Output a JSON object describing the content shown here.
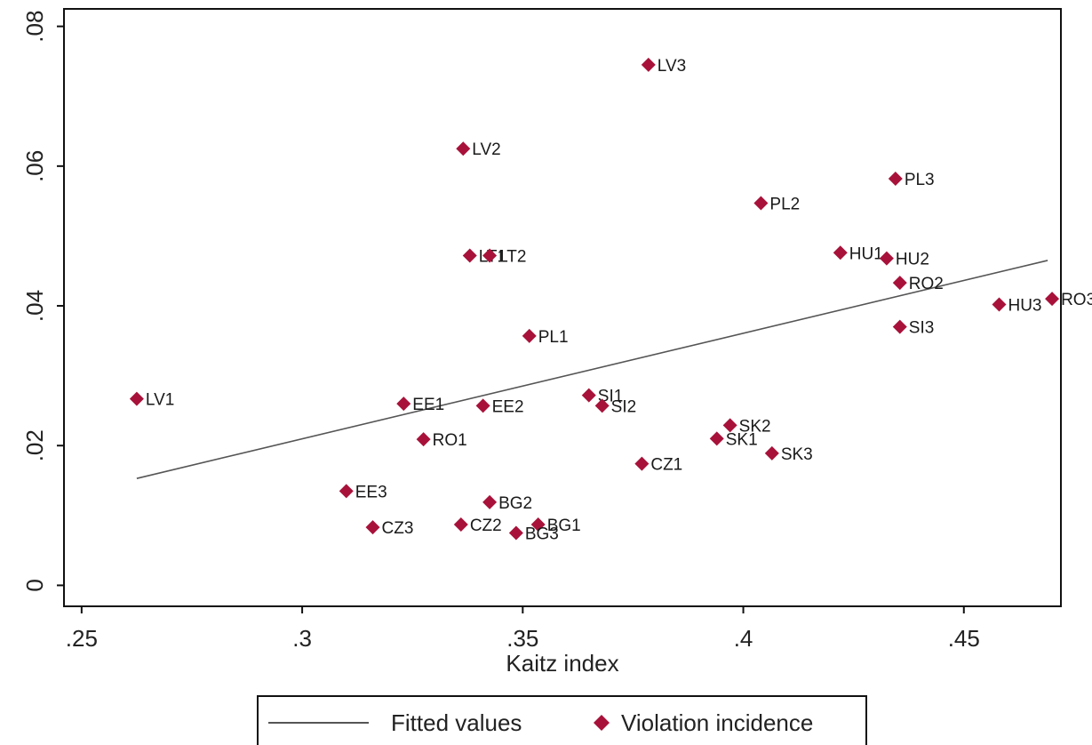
{
  "chart_data": {
    "type": "scatter",
    "xlabel": "Kaitz index",
    "ylabel": "",
    "xlim": [
      0.246,
      0.472
    ],
    "ylim": [
      -0.003,
      0.0825
    ],
    "x_ticks": [
      0.25,
      0.3,
      0.35,
      0.4,
      0.45
    ],
    "x_tick_labels": [
      ".25",
      ".3",
      ".35",
      ".4",
      ".45"
    ],
    "y_ticks": [
      0,
      0.02,
      0.04,
      0.06,
      0.08
    ],
    "y_tick_labels": [
      "0",
      ".02",
      ".04",
      ".06",
      ".08"
    ],
    "grid": false,
    "colors": {
      "marker": "#a8123a",
      "fit_line": "#555555"
    },
    "series": [
      {
        "name": "Violation incidence",
        "marker": "diamond",
        "points": [
          {
            "label": "LV1",
            "x": 0.2625,
            "y": 0.0267
          },
          {
            "label": "LV2",
            "x": 0.3365,
            "y": 0.0625
          },
          {
            "label": "LV3",
            "x": 0.3785,
            "y": 0.0745
          },
          {
            "label": "LT1",
            "x": 0.338,
            "y": 0.0472
          },
          {
            "label": "LT2",
            "x": 0.3425,
            "y": 0.0472
          },
          {
            "label": "PL1",
            "x": 0.3515,
            "y": 0.0357
          },
          {
            "label": "PL2",
            "x": 0.404,
            "y": 0.0547
          },
          {
            "label": "PL3",
            "x": 0.4345,
            "y": 0.0582
          },
          {
            "label": "HU1",
            "x": 0.422,
            "y": 0.0476
          },
          {
            "label": "HU2",
            "x": 0.4325,
            "y": 0.0468
          },
          {
            "label": "HU3",
            "x": 0.458,
            "y": 0.0402
          },
          {
            "label": "RO1",
            "x": 0.3275,
            "y": 0.0209
          },
          {
            "label": "RO2",
            "x": 0.4355,
            "y": 0.0433
          },
          {
            "label": "RO3",
            "x": 0.47,
            "y": 0.041
          },
          {
            "label": "SI1",
            "x": 0.365,
            "y": 0.0272
          },
          {
            "label": "SI2",
            "x": 0.368,
            "y": 0.0257
          },
          {
            "label": "SI3",
            "x": 0.4355,
            "y": 0.037
          },
          {
            "label": "EE1",
            "x": 0.323,
            "y": 0.026
          },
          {
            "label": "EE2",
            "x": 0.341,
            "y": 0.0257
          },
          {
            "label": "EE3",
            "x": 0.31,
            "y": 0.0135
          },
          {
            "label": "SK1",
            "x": 0.394,
            "y": 0.021
          },
          {
            "label": "SK2",
            "x": 0.397,
            "y": 0.0229
          },
          {
            "label": "SK3",
            "x": 0.4065,
            "y": 0.0189
          },
          {
            "label": "CZ1",
            "x": 0.377,
            "y": 0.0174
          },
          {
            "label": "CZ2",
            "x": 0.336,
            "y": 0.0087
          },
          {
            "label": "CZ3",
            "x": 0.316,
            "y": 0.0083
          },
          {
            "label": "BG1",
            "x": 0.3535,
            "y": 0.0087
          },
          {
            "label": "BG2",
            "x": 0.3425,
            "y": 0.0119
          },
          {
            "label": "BG3",
            "x": 0.3485,
            "y": 0.0075
          }
        ]
      },
      {
        "name": "Fitted values",
        "type": "line",
        "x": [
          0.2625,
          0.469
        ],
        "y": [
          0.0153,
          0.0465
        ]
      }
    ],
    "legend": {
      "position": "bottom",
      "entries": [
        "Fitted values",
        "Violation incidence"
      ]
    }
  }
}
